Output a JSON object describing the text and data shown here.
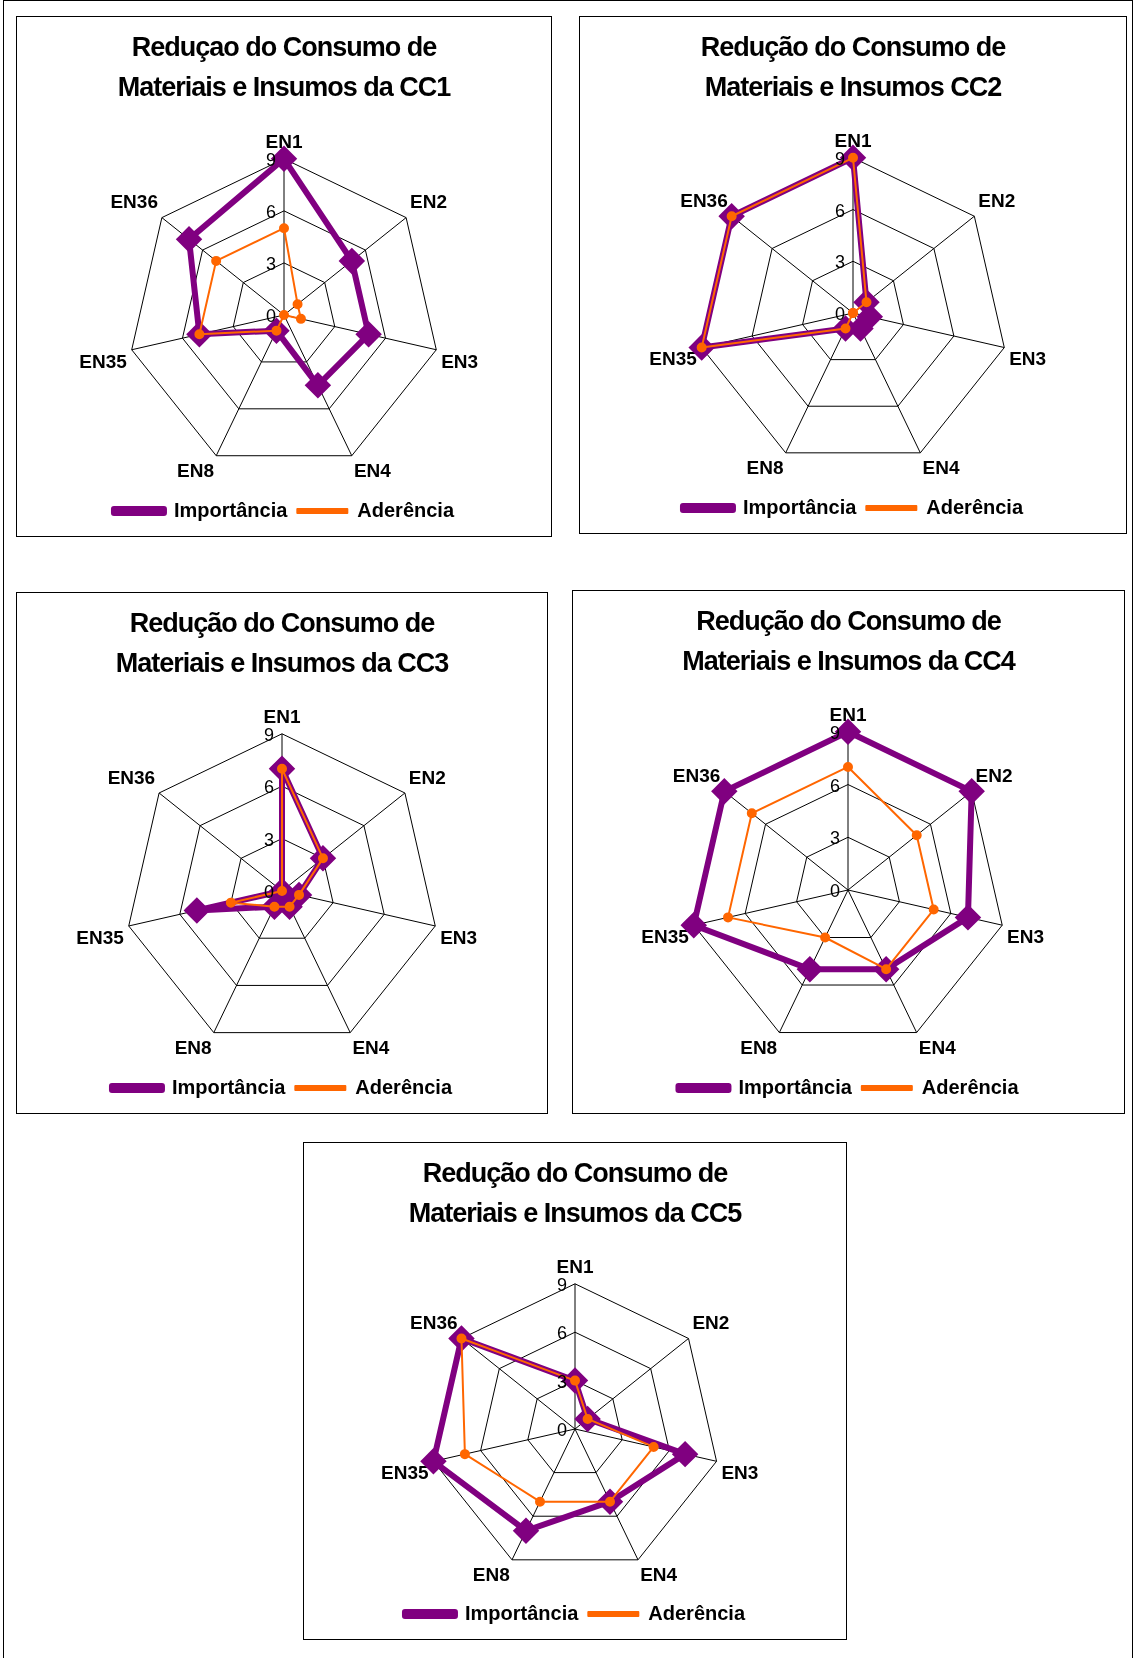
{
  "chart_data": [
    {
      "type": "radar",
      "title": "Reduçao do Consumo de Materiais e Insumos da CC1",
      "categories": [
        "EN1",
        "EN2",
        "EN3",
        "EN4",
        "EN8",
        "EN35",
        "EN36"
      ],
      "ylim": [
        0,
        9
      ],
      "yticks": [
        0,
        3,
        6,
        9
      ],
      "grid": true,
      "legend": "bottom",
      "series": [
        {
          "name": "Importância",
          "color": "#800080",
          "marker": "diamond",
          "values": [
            9,
            5,
            5,
            4.5,
            1,
            5,
            7
          ]
        },
        {
          "name": "Aderência",
          "color": "#ff6600",
          "marker": "circle",
          "values": [
            5,
            1,
            1,
            0,
            1,
            5,
            5
          ]
        }
      ]
    },
    {
      "type": "radar",
      "title": "Redução do Consumo de Materiais e Insumos CC2",
      "categories": [
        "EN1",
        "EN2",
        "EN3",
        "EN4",
        "EN8",
        "EN35",
        "EN36"
      ],
      "ylim": [
        0,
        9
      ],
      "yticks": [
        0,
        3,
        6,
        9
      ],
      "grid": true,
      "legend": "bottom",
      "series": [
        {
          "name": "Importância",
          "color": "#800080",
          "marker": "diamond",
          "values": [
            9,
            1,
            1,
            1,
            1,
            9,
            9
          ]
        },
        {
          "name": "Aderência",
          "color": "#ff6600",
          "marker": "circle",
          "values": [
            9,
            1,
            0,
            0,
            1,
            9,
            9
          ]
        }
      ]
    },
    {
      "type": "radar",
      "title": "Redução do Consumo de Materiais e Insumos da CC3",
      "categories": [
        "EN1",
        "EN2",
        "EN3",
        "EN4",
        "EN8",
        "EN35",
        "EN36"
      ],
      "ylim": [
        0,
        9
      ],
      "yticks": [
        0,
        3,
        6,
        9
      ],
      "grid": true,
      "legend": "bottom",
      "series": [
        {
          "name": "Importância",
          "color": "#800080",
          "marker": "diamond",
          "values": [
            7,
            3,
            1,
            1,
            1,
            5,
            0
          ]
        },
        {
          "name": "Aderência",
          "color": "#ff6600",
          "marker": "circle",
          "values": [
            7,
            3,
            1,
            1,
            1,
            3,
            0
          ]
        }
      ]
    },
    {
      "type": "radar",
      "title": "Redução do Consumo de Materiais e Insumos da CC4",
      "categories": [
        "EN1",
        "EN2",
        "EN3",
        "EN4",
        "EN8",
        "EN35",
        "EN36"
      ],
      "ylim": [
        0,
        9
      ],
      "yticks": [
        0,
        3,
        6,
        9
      ],
      "grid": true,
      "legend": "bottom",
      "series": [
        {
          "name": "Importância",
          "color": "#800080",
          "marker": "diamond",
          "values": [
            9,
            9,
            7,
            5,
            5,
            9,
            9
          ]
        },
        {
          "name": "Aderência",
          "color": "#ff6600",
          "marker": "circle",
          "values": [
            7,
            5,
            5,
            5,
            3,
            7,
            7
          ]
        }
      ]
    },
    {
      "type": "radar",
      "title": "Redução do Consumo de Materiais e Insumos da CC5",
      "categories": [
        "EN1",
        "EN2",
        "EN3",
        "EN4",
        "EN8",
        "EN35",
        "EN36"
      ],
      "ylim": [
        0,
        9
      ],
      "yticks": [
        0,
        3,
        6,
        9
      ],
      "grid": true,
      "legend": "bottom",
      "series": [
        {
          "name": "Importância",
          "color": "#800080",
          "marker": "diamond",
          "values": [
            3,
            1,
            7,
            5,
            7,
            9,
            9
          ]
        },
        {
          "name": "Aderência",
          "color": "#ff6600",
          "marker": "circle",
          "values": [
            3,
            1,
            5,
            5,
            5,
            7,
            9
          ]
        }
      ]
    }
  ]
}
